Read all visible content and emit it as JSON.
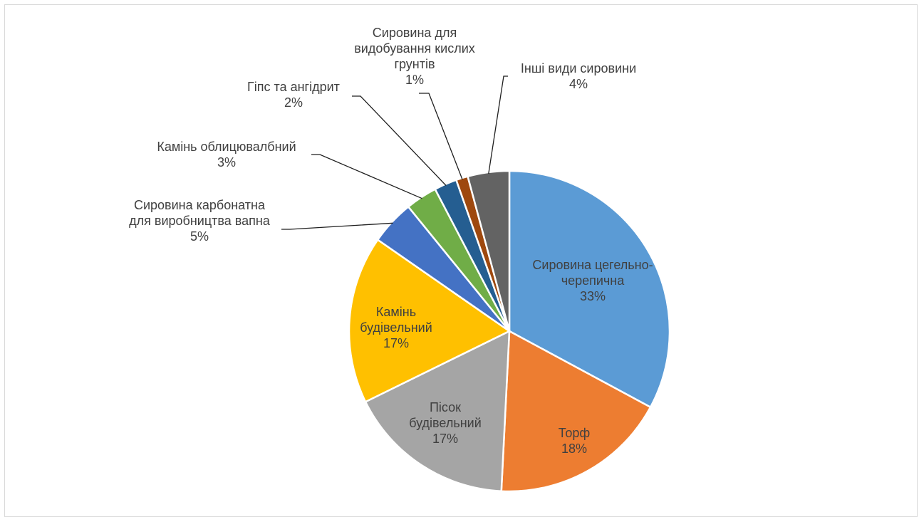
{
  "chart_data": {
    "type": "pie",
    "title": "",
    "slices": [
      {
        "label": [
          "Сировина цегельно-",
          "черепична"
        ],
        "pct_label": "33%",
        "value": 33,
        "color": "#5b9bd5",
        "inside": true,
        "text_color": "#404040"
      },
      {
        "label": [
          "Торф"
        ],
        "pct_label": "18%",
        "value": 18,
        "color": "#ed7d31",
        "inside": true,
        "text_color": "#404040"
      },
      {
        "label": [
          "Пісок",
          "будівельний"
        ],
        "pct_label": "17%",
        "value": 17,
        "color": "#a5a5a5",
        "inside": true,
        "text_color": "#404040"
      },
      {
        "label": [
          "Камінь",
          "будівельний"
        ],
        "pct_label": "17%",
        "value": 17,
        "color": "#ffc000",
        "inside": true,
        "text_color": "#404040"
      },
      {
        "label": [
          "Сировина карбонатна",
          "для виробництва вапна"
        ],
        "pct_label": "5%",
        "value": 4.5,
        "color": "#4472c4",
        "inside": false,
        "text_color": "#404040"
      },
      {
        "label": [
          "Камінь облицювалбний"
        ],
        "pct_label": "3%",
        "value": 3.2,
        "color": "#70ad47",
        "inside": false,
        "text_color": "#404040"
      },
      {
        "label": [
          "Гіпс та ангідрит"
        ],
        "pct_label": "2%",
        "value": 2.3,
        "color": "#255e91",
        "inside": false,
        "text_color": "#404040"
      },
      {
        "label": [
          "Сировина для",
          "видобування кислих",
          "грунтів"
        ],
        "pct_label": "1%",
        "value": 1.2,
        "color": "#9e480e",
        "inside": false,
        "text_color": "#404040"
      },
      {
        "label": [
          "Інші види сировини"
        ],
        "pct_label": "4%",
        "value": 4.2,
        "color": "#636363",
        "inside": false,
        "text_color": "#404040"
      }
    ]
  }
}
